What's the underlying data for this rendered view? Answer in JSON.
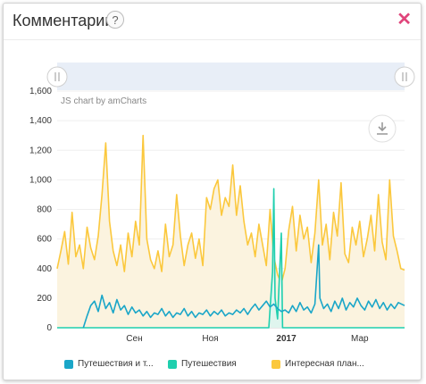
{
  "header": {
    "title": "Комментарии",
    "help": "?",
    "close": "✕"
  },
  "credit": "JS chart by amCharts",
  "download_icon": "download-icon",
  "chart_data": {
    "type": "line",
    "ylim": [
      0,
      1600
    ],
    "yticks": [
      0,
      200,
      400,
      600,
      800,
      "1,000",
      "1,200",
      "1,400",
      "1,600"
    ],
    "x_start": "2016-07-01",
    "x_end": "2017-04-06",
    "x_labels": [
      {
        "label": "Сен",
        "date": "2016-09-01",
        "bold": false
      },
      {
        "label": "Ноя",
        "date": "2016-11-01",
        "bold": false
      },
      {
        "label": "2017",
        "date": "2017-01-01",
        "bold": true
      },
      {
        "label": "Мар",
        "date": "2017-03-01",
        "bold": false
      }
    ],
    "series": [
      {
        "name": "Интересная план...",
        "color": "#fbc83d",
        "fill": "#fbf3df",
        "points": [
          [
            "2016-07-01",
            400
          ],
          [
            "2016-07-04",
            520
          ],
          [
            "2016-07-07",
            650
          ],
          [
            "2016-07-10",
            430
          ],
          [
            "2016-07-13",
            780
          ],
          [
            "2016-07-16",
            480
          ],
          [
            "2016-07-19",
            560
          ],
          [
            "2016-07-22",
            400
          ],
          [
            "2016-07-25",
            680
          ],
          [
            "2016-07-28",
            540
          ],
          [
            "2016-07-31",
            460
          ],
          [
            "2016-08-03",
            620
          ],
          [
            "2016-08-06",
            900
          ],
          [
            "2016-08-09",
            1250
          ],
          [
            "2016-08-12",
            720
          ],
          [
            "2016-08-15",
            520
          ],
          [
            "2016-08-18",
            420
          ],
          [
            "2016-08-21",
            560
          ],
          [
            "2016-08-24",
            380
          ],
          [
            "2016-08-27",
            640
          ],
          [
            "2016-08-30",
            480
          ],
          [
            "2016-09-02",
            720
          ],
          [
            "2016-09-05",
            560
          ],
          [
            "2016-09-08",
            1300
          ],
          [
            "2016-09-11",
            600
          ],
          [
            "2016-09-14",
            460
          ],
          [
            "2016-09-17",
            400
          ],
          [
            "2016-09-20",
            520
          ],
          [
            "2016-09-23",
            380
          ],
          [
            "2016-09-26",
            700
          ],
          [
            "2016-09-29",
            480
          ],
          [
            "2016-10-02",
            560
          ],
          [
            "2016-10-05",
            900
          ],
          [
            "2016-10-08",
            620
          ],
          [
            "2016-10-11",
            420
          ],
          [
            "2016-10-14",
            560
          ],
          [
            "2016-10-17",
            640
          ],
          [
            "2016-10-20",
            470
          ],
          [
            "2016-10-23",
            600
          ],
          [
            "2016-10-26",
            420
          ],
          [
            "2016-10-29",
            880
          ],
          [
            "2016-11-01",
            800
          ],
          [
            "2016-11-04",
            940
          ],
          [
            "2016-11-07",
            1000
          ],
          [
            "2016-11-10",
            760
          ],
          [
            "2016-11-13",
            880
          ],
          [
            "2016-11-16",
            820
          ],
          [
            "2016-11-19",
            1100
          ],
          [
            "2016-11-22",
            760
          ],
          [
            "2016-11-25",
            960
          ],
          [
            "2016-11-28",
            720
          ],
          [
            "2016-12-01",
            560
          ],
          [
            "2016-12-04",
            640
          ],
          [
            "2016-12-07",
            480
          ],
          [
            "2016-12-10",
            700
          ],
          [
            "2016-12-13",
            560
          ],
          [
            "2016-12-16",
            420
          ],
          [
            "2016-12-19",
            800
          ],
          [
            "2016-12-22",
            480
          ],
          [
            "2016-12-25",
            360
          ],
          [
            "2016-12-28",
            300
          ],
          [
            "2016-12-31",
            400
          ],
          [
            "2017-01-03",
            660
          ],
          [
            "2017-01-06",
            820
          ],
          [
            "2017-01-09",
            520
          ],
          [
            "2017-01-12",
            760
          ],
          [
            "2017-01-15",
            600
          ],
          [
            "2017-01-18",
            680
          ],
          [
            "2017-01-21",
            440
          ],
          [
            "2017-01-24",
            640
          ],
          [
            "2017-01-27",
            1000
          ],
          [
            "2017-01-30",
            560
          ],
          [
            "2017-02-02",
            700
          ],
          [
            "2017-02-05",
            460
          ],
          [
            "2017-02-08",
            780
          ],
          [
            "2017-02-11",
            620
          ],
          [
            "2017-02-14",
            980
          ],
          [
            "2017-02-17",
            500
          ],
          [
            "2017-02-20",
            440
          ],
          [
            "2017-02-23",
            680
          ],
          [
            "2017-02-26",
            560
          ],
          [
            "2017-03-01",
            720
          ],
          [
            "2017-03-04",
            480
          ],
          [
            "2017-03-07",
            600
          ],
          [
            "2017-03-10",
            760
          ],
          [
            "2017-03-13",
            520
          ],
          [
            "2017-03-16",
            900
          ],
          [
            "2017-03-19",
            580
          ],
          [
            "2017-03-22",
            460
          ],
          [
            "2017-03-25",
            1000
          ],
          [
            "2017-03-28",
            620
          ],
          [
            "2017-03-31",
            520
          ],
          [
            "2017-04-03",
            400
          ],
          [
            "2017-04-06",
            390
          ]
        ]
      },
      {
        "name": "Путешествия",
        "color": "#1fcfae",
        "fill": "#dff5ee",
        "points": [
          [
            "2016-07-01",
            0
          ],
          [
            "2016-12-18",
            0
          ],
          [
            "2016-12-21",
            380
          ],
          [
            "2016-12-22",
            940
          ],
          [
            "2016-12-23",
            200
          ],
          [
            "2016-12-25",
            60
          ],
          [
            "2016-12-28",
            640
          ],
          [
            "2016-12-29",
            0
          ],
          [
            "2017-04-06",
            0
          ]
        ]
      },
      {
        "name": "Путешествия и т...",
        "color": "#1aa6c8",
        "fill": "none",
        "points": [
          [
            "2016-07-22",
            0
          ],
          [
            "2016-07-25",
            80
          ],
          [
            "2016-07-28",
            150
          ],
          [
            "2016-07-31",
            180
          ],
          [
            "2016-08-03",
            110
          ],
          [
            "2016-08-06",
            220
          ],
          [
            "2016-08-09",
            130
          ],
          [
            "2016-08-12",
            170
          ],
          [
            "2016-08-15",
            100
          ],
          [
            "2016-08-18",
            190
          ],
          [
            "2016-08-21",
            120
          ],
          [
            "2016-08-24",
            150
          ],
          [
            "2016-08-27",
            90
          ],
          [
            "2016-08-30",
            140
          ],
          [
            "2016-09-02",
            100
          ],
          [
            "2016-09-05",
            120
          ],
          [
            "2016-09-08",
            80
          ],
          [
            "2016-09-11",
            110
          ],
          [
            "2016-09-14",
            70
          ],
          [
            "2016-09-17",
            100
          ],
          [
            "2016-09-20",
            90
          ],
          [
            "2016-09-23",
            130
          ],
          [
            "2016-09-26",
            80
          ],
          [
            "2016-09-29",
            110
          ],
          [
            "2016-10-02",
            70
          ],
          [
            "2016-10-05",
            100
          ],
          [
            "2016-10-08",
            90
          ],
          [
            "2016-10-11",
            130
          ],
          [
            "2016-10-14",
            80
          ],
          [
            "2016-10-17",
            110
          ],
          [
            "2016-10-20",
            70
          ],
          [
            "2016-10-23",
            100
          ],
          [
            "2016-10-26",
            90
          ],
          [
            "2016-10-29",
            120
          ],
          [
            "2016-11-01",
            80
          ],
          [
            "2016-11-04",
            110
          ],
          [
            "2016-11-07",
            90
          ],
          [
            "2016-11-10",
            120
          ],
          [
            "2016-11-13",
            80
          ],
          [
            "2016-11-16",
            100
          ],
          [
            "2016-11-19",
            90
          ],
          [
            "2016-11-22",
            120
          ],
          [
            "2016-11-25",
            100
          ],
          [
            "2016-11-28",
            130
          ],
          [
            "2016-12-01",
            90
          ],
          [
            "2016-12-04",
            130
          ],
          [
            "2016-12-07",
            160
          ],
          [
            "2016-12-10",
            120
          ],
          [
            "2016-12-13",
            150
          ],
          [
            "2016-12-16",
            180
          ],
          [
            "2016-12-19",
            140
          ],
          [
            "2016-12-22",
            160
          ],
          [
            "2016-12-25",
            130
          ],
          [
            "2016-12-28",
            110
          ],
          [
            "2016-12-31",
            120
          ],
          [
            "2017-01-03",
            100
          ],
          [
            "2017-01-06",
            150
          ],
          [
            "2017-01-09",
            110
          ],
          [
            "2017-01-12",
            170
          ],
          [
            "2017-01-15",
            120
          ],
          [
            "2017-01-18",
            140
          ],
          [
            "2017-01-21",
            100
          ],
          [
            "2017-01-24",
            160
          ],
          [
            "2017-01-27",
            560
          ],
          [
            "2017-01-28",
            200
          ],
          [
            "2017-01-31",
            130
          ],
          [
            "2017-02-03",
            160
          ],
          [
            "2017-02-06",
            110
          ],
          [
            "2017-02-09",
            180
          ],
          [
            "2017-02-12",
            130
          ],
          [
            "2017-02-15",
            200
          ],
          [
            "2017-02-18",
            120
          ],
          [
            "2017-02-21",
            170
          ],
          [
            "2017-02-24",
            140
          ],
          [
            "2017-02-27",
            200
          ],
          [
            "2017-03-02",
            150
          ],
          [
            "2017-03-05",
            120
          ],
          [
            "2017-03-08",
            180
          ],
          [
            "2017-03-11",
            140
          ],
          [
            "2017-03-14",
            190
          ],
          [
            "2017-03-17",
            130
          ],
          [
            "2017-03-20",
            170
          ],
          [
            "2017-03-23",
            120
          ],
          [
            "2017-03-26",
            160
          ],
          [
            "2017-03-29",
            130
          ],
          [
            "2017-04-01",
            170
          ],
          [
            "2017-04-06",
            150
          ]
        ]
      }
    ],
    "legend": [
      "Путешествия и т...",
      "Путешествия",
      "Интересная план..."
    ],
    "legend_colors": [
      "#1aa6c8",
      "#1fcfae",
      "#fbc83d"
    ]
  }
}
